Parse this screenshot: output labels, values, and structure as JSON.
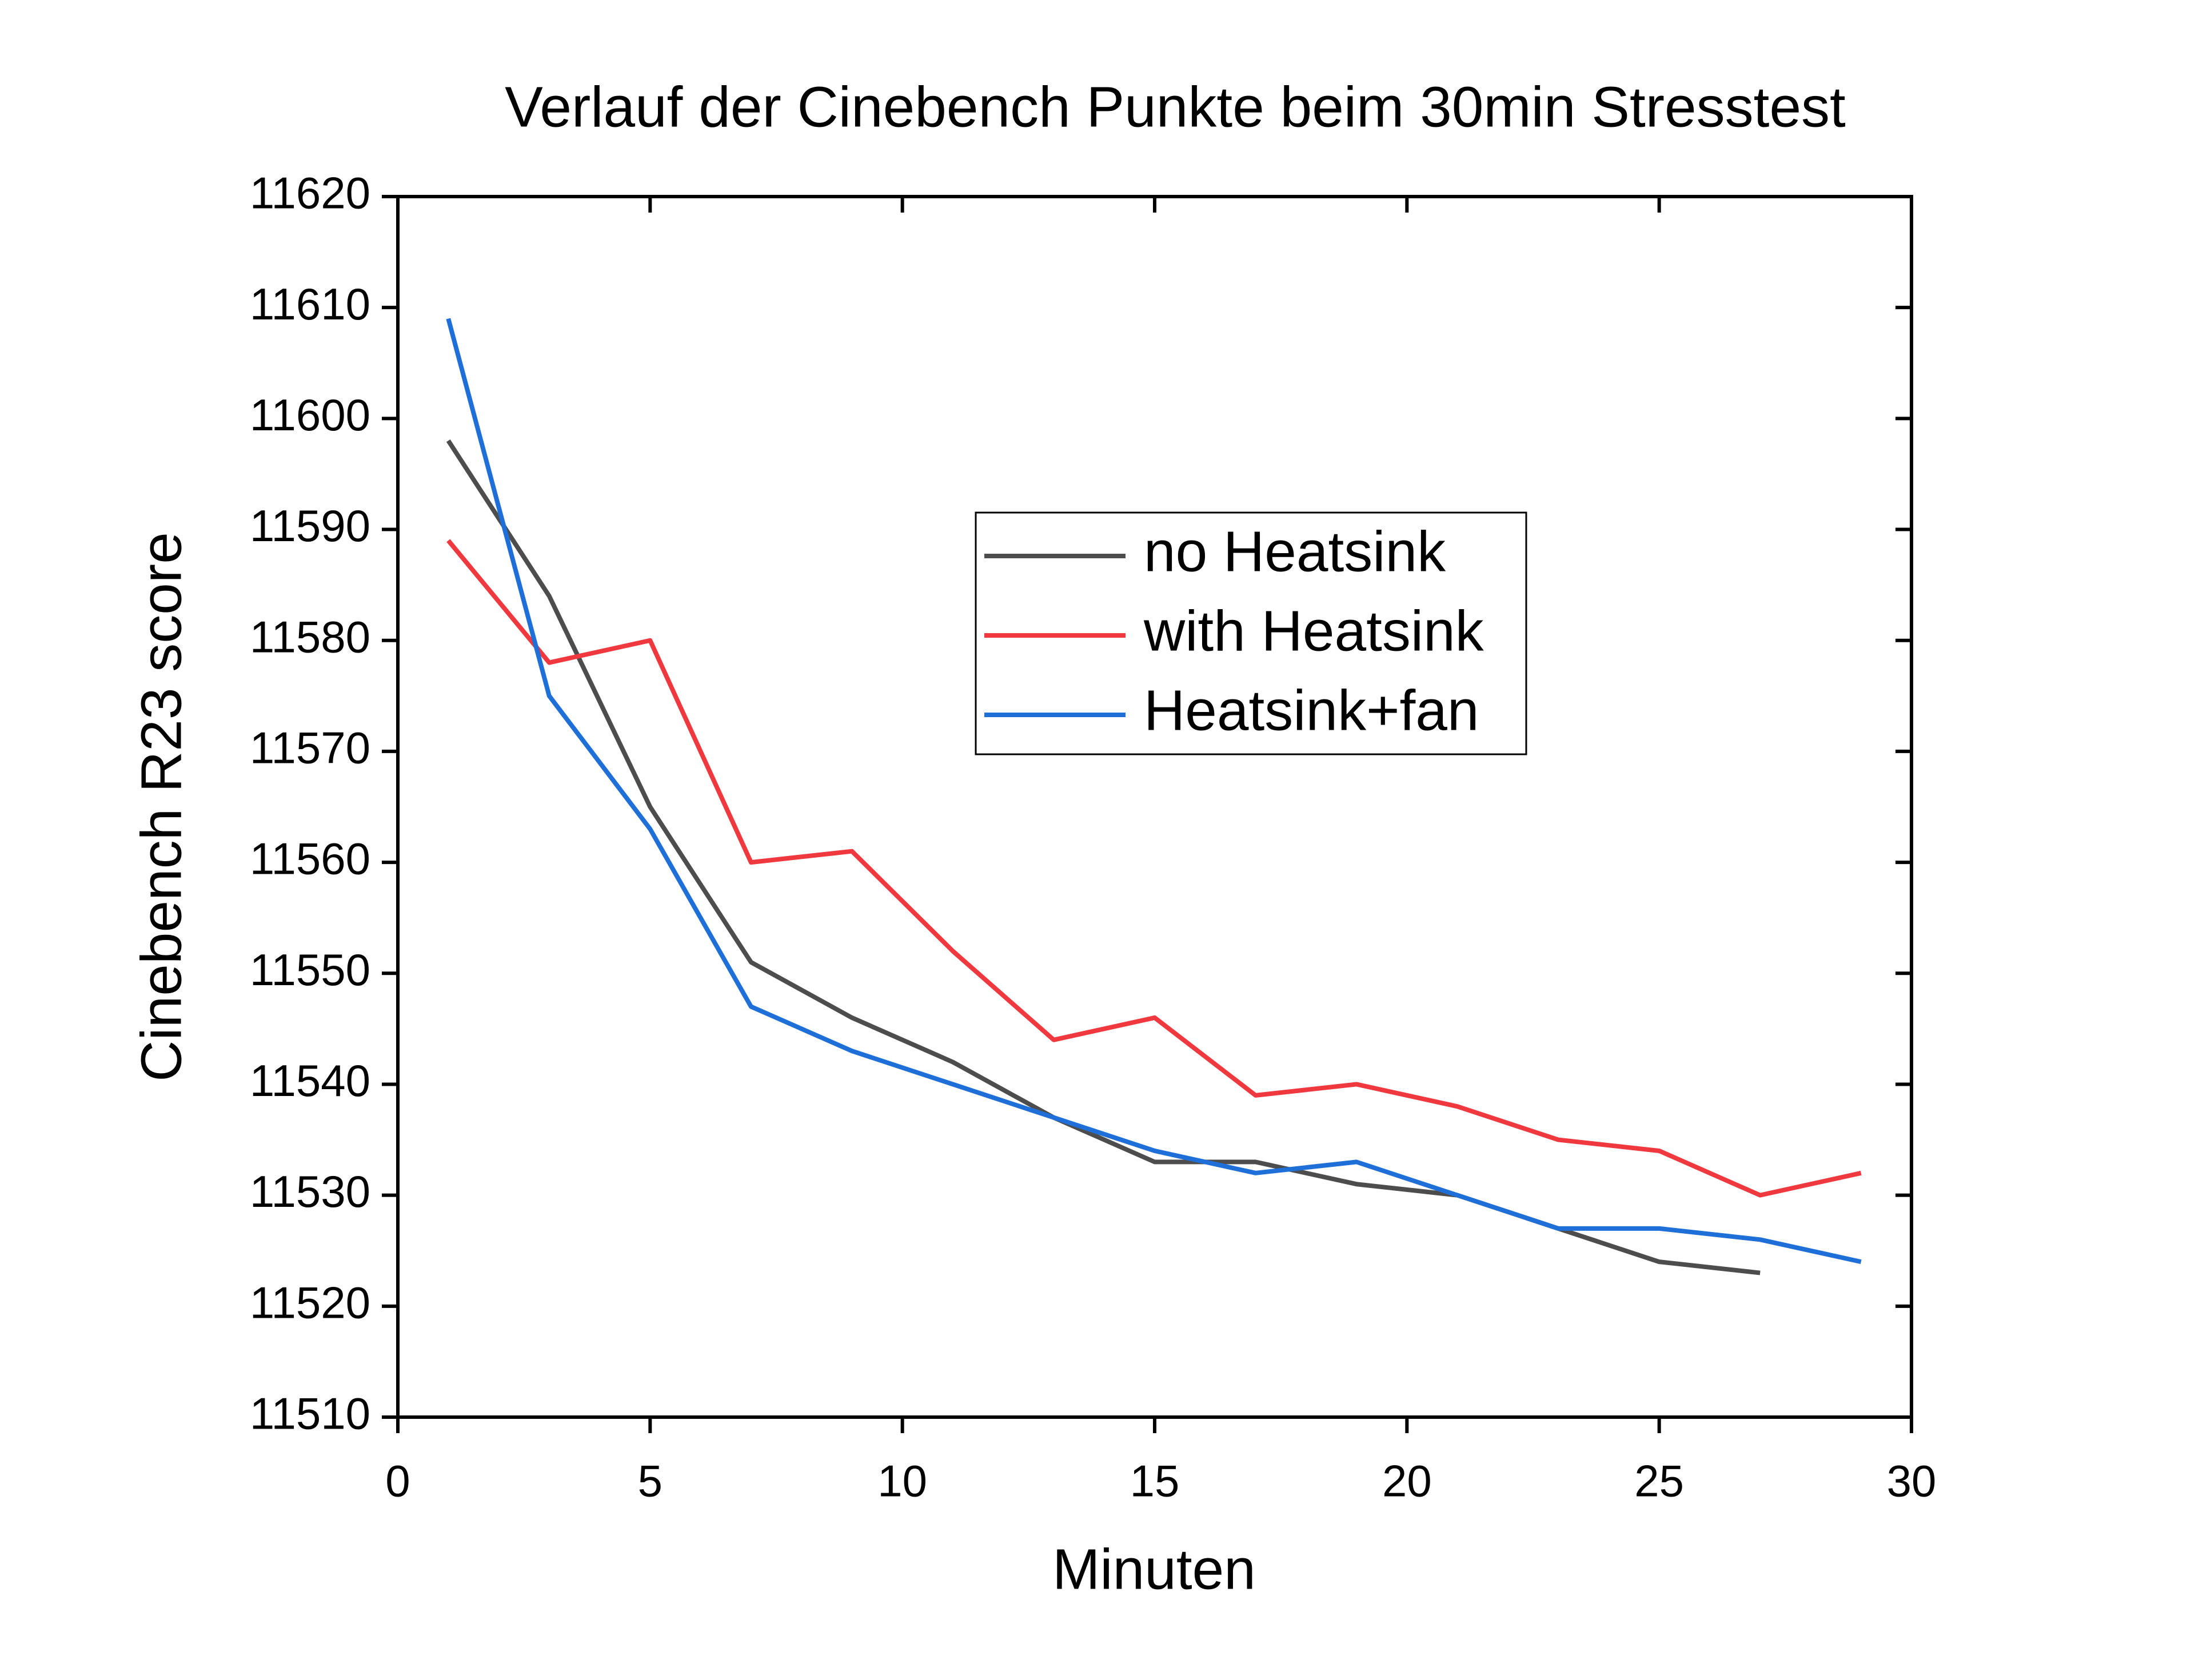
{
  "chart_data": {
    "type": "line",
    "title": "Verlauf der Cinebench Punkte beim 30min Stresstest",
    "x_label": "Minuten",
    "y_label": "Cinebench R23 score",
    "x": [
      1,
      3,
      5,
      7,
      9,
      11,
      13,
      15,
      17,
      19,
      21,
      23,
      25,
      27,
      29
    ],
    "series": [
      {
        "name": "no Heatsink",
        "color": "#4d4d4d",
        "values": [
          11598,
          11584,
          11565,
          11551,
          11546,
          11542,
          11537,
          11533,
          11533,
          11531,
          11530,
          11527,
          11524,
          11523,
          null
        ]
      },
      {
        "name": "with Heatsink",
        "color": "#f0393f",
        "values": [
          11589,
          11578,
          11580,
          11560,
          11561,
          11552,
          11544,
          11546,
          11539,
          11540,
          11538,
          11535,
          11534,
          11530,
          11532
        ]
      },
      {
        "name": "Heatsink+fan",
        "color": "#1f6fd9",
        "values": [
          11609,
          11575,
          11563,
          11547,
          11543,
          11540,
          11537,
          11534,
          11532,
          11533,
          11530,
          11527,
          11527,
          11526,
          11524
        ]
      }
    ],
    "xlim": [
      0,
      30
    ],
    "xticks": [
      0,
      5,
      10,
      15,
      20,
      25,
      30
    ],
    "ylim": [
      11510,
      11620
    ],
    "yticks": [
      11510,
      11520,
      11530,
      11540,
      11550,
      11560,
      11570,
      11580,
      11590,
      11600,
      11610,
      11620
    ],
    "grid": false,
    "legend_position": "center"
  }
}
